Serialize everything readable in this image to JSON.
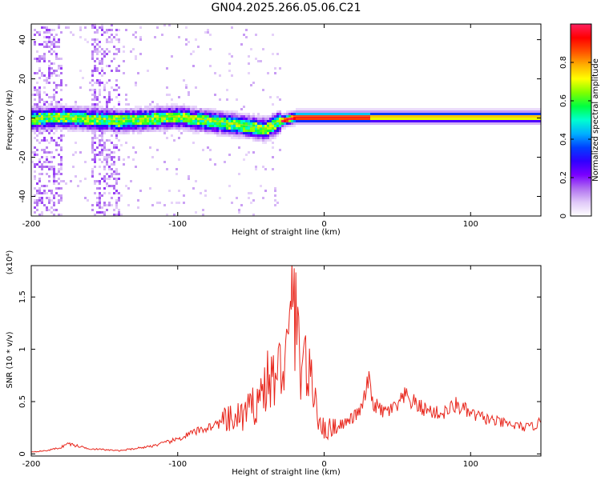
{
  "figure": {
    "title": "GN04.2025.266.05.06.C21"
  },
  "chart_data": [
    {
      "type": "heatmap",
      "title": "GN04.2025.266.05.06.C21",
      "xlabel": "Height of straight line (km)",
      "ylabel": "Frequency (Hz)",
      "xlim": [
        -200,
        148
      ],
      "ylim": [
        -50,
        48
      ],
      "x_ticks": [
        -200,
        -100,
        0,
        100
      ],
      "y_ticks": [
        -40,
        -20,
        0,
        20,
        40
      ],
      "colorbar": {
        "label": "Normalized spectral amplitude",
        "range": [
          0,
          1
        ],
        "ticks": [
          0.0,
          0.2,
          0.4,
          0.6,
          0.8
        ],
        "colors": [
          "#ffffff",
          "#e0c8f8",
          "#b070f0",
          "#7a00ff",
          "#3000ff",
          "#0040ff",
          "#00b0ff",
          "#00ffd0",
          "#00ff40",
          "#80ff00",
          "#ffff00",
          "#ffb000",
          "#ff5000",
          "#ff0000",
          "#ff2060"
        ]
      },
      "ridge_frequency": {
        "x": [
          -200,
          -180,
          -160,
          -140,
          -120,
          -100,
          -90,
          -80,
          -70,
          -60,
          -50,
          -45,
          -40,
          -35,
          -30,
          -25,
          -20,
          -10,
          0,
          10,
          20,
          50,
          100,
          148
        ],
        "y": [
          0,
          1,
          0,
          -1,
          0,
          1,
          0,
          -1,
          -2,
          -3,
          -4,
          -5,
          -5,
          -3,
          -1,
          0,
          1,
          1,
          1,
          1,
          1,
          1,
          1,
          1
        ]
      },
      "grid": false
    },
    {
      "type": "line",
      "xlabel": "Height of straight line (km)",
      "ylabel": "SNR (10 * v/v)",
      "y_scale_note": "(x10⁴)",
      "xlim": [
        -200,
        148
      ],
      "ylim": [
        -0.02,
        1.8
      ],
      "x_ticks": [
        -200,
        -100,
        0,
        100
      ],
      "y_ticks": [
        0.0,
        0.5,
        1.0,
        1.5
      ],
      "series": [
        {
          "color": "#e8261c",
          "x": [
            -200,
            -190,
            -180,
            -175,
            -170,
            -160,
            -150,
            -140,
            -130,
            -120,
            -110,
            -100,
            -90,
            -80,
            -70,
            -60,
            -55,
            -50,
            -45,
            -42,
            -40,
            -36,
            -32,
            -28,
            -25,
            -23,
            -22,
            -21,
            -20,
            -18,
            -16,
            -14,
            -12,
            -10,
            -8,
            -6,
            -4,
            -2,
            0,
            5,
            10,
            15,
            20,
            25,
            28,
            30,
            33,
            36,
            40,
            45,
            50,
            55,
            60,
            65,
            70,
            75,
            80,
            85,
            90,
            95,
            100,
            110,
            120,
            130,
            140,
            148
          ],
          "y": [
            0.02,
            0.03,
            0.06,
            0.1,
            0.08,
            0.05,
            0.04,
            0.03,
            0.05,
            0.07,
            0.1,
            0.14,
            0.2,
            0.25,
            0.3,
            0.33,
            0.38,
            0.42,
            0.55,
            0.6,
            0.68,
            0.7,
            0.75,
            0.9,
            0.95,
            1.15,
            1.5,
            1.77,
            1.3,
            1.05,
            0.9,
            1.0,
            0.8,
            0.7,
            0.6,
            0.55,
            0.4,
            0.3,
            0.22,
            0.25,
            0.28,
            0.3,
            0.35,
            0.42,
            0.55,
            0.72,
            0.5,
            0.45,
            0.4,
            0.42,
            0.45,
            0.55,
            0.5,
            0.45,
            0.42,
            0.4,
            0.38,
            0.42,
            0.47,
            0.43,
            0.38,
            0.34,
            0.3,
            0.27,
            0.25,
            0.3
          ]
        }
      ],
      "grid": false
    }
  ]
}
